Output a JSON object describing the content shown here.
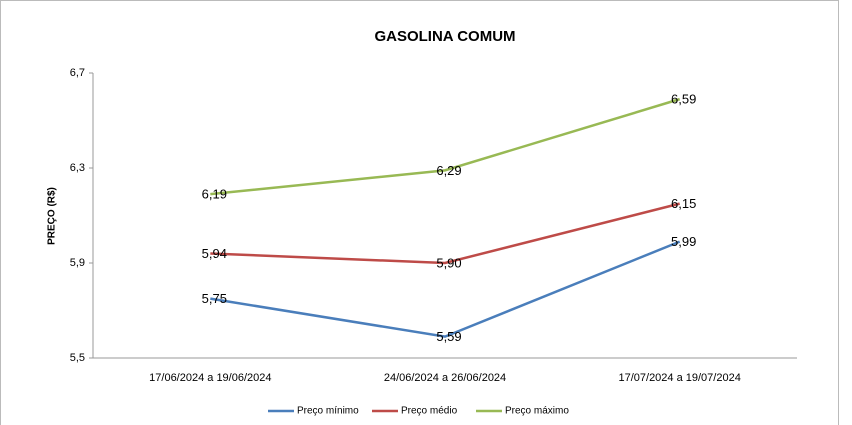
{
  "chart_data": {
    "type": "line",
    "title": "GASOLINA COMUM",
    "y_label": "PREÇO (R$)",
    "categories": [
      "17/06/2024 a 19/06/2024",
      "24/06/2024 a 26/06/2024",
      "17/07/2024 a 19/07/2024"
    ],
    "series": [
      {
        "name": "Preço mínimo",
        "color": "#4a7ebb",
        "values": [
          5.75,
          5.59,
          5.99
        ],
        "value_labels": [
          "5,75",
          "5,59",
          "5,99"
        ]
      },
      {
        "name": "Preço médio",
        "color": "#be4b48",
        "values": [
          5.94,
          5.9,
          6.15
        ],
        "value_labels": [
          "5,94",
          "5,90",
          "6,15"
        ]
      },
      {
        "name": "Preço máximo",
        "color": "#98b954",
        "values": [
          6.19,
          6.29,
          6.59
        ],
        "value_labels": [
          "6,19",
          "6,29",
          "6,59"
        ]
      }
    ],
    "ylim": [
      5.5,
      6.7
    ],
    "yticks": [
      {
        "value": 5.5,
        "label": "5,5"
      },
      {
        "value": 5.9,
        "label": "5,9"
      },
      {
        "value": 6.3,
        "label": "6,3"
      },
      {
        "value": 6.7,
        "label": "6,7"
      }
    ],
    "grid": false,
    "legend": "bottom"
  }
}
